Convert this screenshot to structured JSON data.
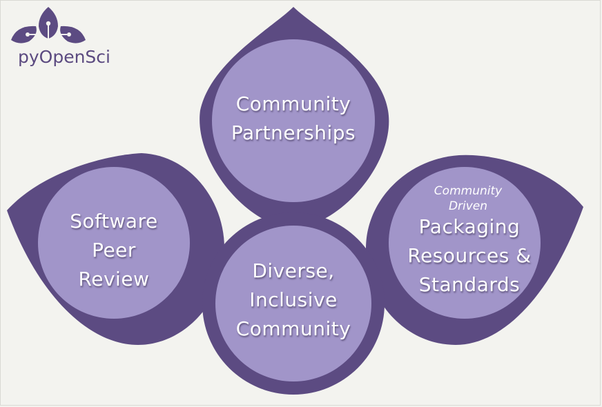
{
  "logo": {
    "text": "pyOpenSci",
    "icon": "flower-icon",
    "color": "#5c4b82"
  },
  "colors": {
    "petal": "#5c4b82",
    "disc": "#a195c9",
    "background": "#f3f3ef",
    "label": "#ffffff"
  },
  "nodes": {
    "top": {
      "lines": [
        "Community",
        "Partnerships"
      ]
    },
    "left": {
      "lines": [
        "Software",
        "Peer",
        "Review"
      ]
    },
    "center": {
      "lines": [
        "Diverse,",
        "Inclusive",
        "Community"
      ]
    },
    "right": {
      "sublabel": [
        "Community",
        "Driven"
      ],
      "lines": [
        "Packaging",
        "Resources &",
        "Standards"
      ]
    }
  }
}
